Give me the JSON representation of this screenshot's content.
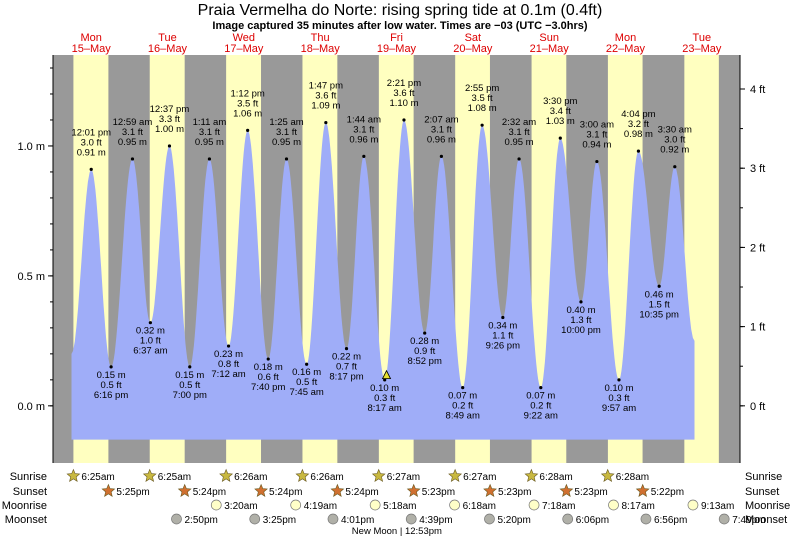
{
  "chart_data": {
    "type": "area",
    "title": "Praia Vermelha do Norte: rising  spring tide at 0.1m (0.4ft)",
    "subtitle": "Image captured 35 minutes after low water. Times are −03 (UTC −3.0hrs)",
    "days": [
      {
        "dow": "Mon",
        "date": "15–May"
      },
      {
        "dow": "Tue",
        "date": "16–May"
      },
      {
        "dow": "Wed",
        "date": "17–May"
      },
      {
        "dow": "Thu",
        "date": "18–May"
      },
      {
        "dow": "Fri",
        "date": "19–May"
      },
      {
        "dow": "Sat",
        "date": "20–May"
      },
      {
        "dow": "Sun",
        "date": "21–May"
      },
      {
        "dow": "Mon",
        "date": "22–May"
      },
      {
        "dow": "Tue",
        "date": "23–May"
      }
    ],
    "y_left_ticks": [
      {
        "value": 0.0,
        "label": "0.0 m"
      },
      {
        "value": 0.5,
        "label": "0.5 m"
      },
      {
        "value": 1.0,
        "label": "1.0 m"
      }
    ],
    "y_right_ticks": [
      {
        "value": 0,
        "label": "0 ft"
      },
      {
        "value": 1,
        "label": "1 ft"
      },
      {
        "value": 2,
        "label": "2 ft"
      },
      {
        "value": 3,
        "label": "3 ft"
      },
      {
        "value": 4,
        "label": "4 ft"
      }
    ],
    "ylim_m": [
      -0.22,
      1.35
    ],
    "xlim_hours": [
      -12,
      204
    ],
    "tides": [
      {
        "day": 0,
        "hour": 0.017,
        "time": "12:01 pm",
        "ft": "3.0 ft",
        "m": "0.91 m",
        "h": 0.91,
        "type": "high"
      },
      {
        "day": 0,
        "hour": 6.267,
        "time": "6:16 pm",
        "ft": "0.5 ft",
        "m": "0.15 m",
        "h": 0.15,
        "type": "low"
      },
      {
        "day": 0,
        "hour": 12.983,
        "time": "12:59 am",
        "ft": "3.1 ft",
        "m": "0.95 m",
        "h": 0.95,
        "type": "high"
      },
      {
        "day": 1,
        "hour": 18.617,
        "time": "6:37 am",
        "ft": "1.0 ft",
        "m": "0.32 m",
        "h": 0.32,
        "type": "low"
      },
      {
        "day": 1,
        "hour": 24.617,
        "time": "12:37 pm",
        "ft": "3.3 ft",
        "m": "1.00 m",
        "h": 1.0,
        "type": "high"
      },
      {
        "day": 1,
        "hour": 31.0,
        "time": "7:00 pm",
        "ft": "0.5 ft",
        "m": "0.15 m",
        "h": 0.15,
        "type": "low"
      },
      {
        "day": 1,
        "hour": 37.183,
        "time": "1:11 am",
        "ft": "3.1 ft",
        "m": "0.95 m",
        "h": 0.95,
        "type": "high"
      },
      {
        "day": 2,
        "hour": 43.2,
        "time": "7:12 am",
        "ft": "0.8 ft",
        "m": "0.23 m",
        "h": 0.23,
        "type": "low"
      },
      {
        "day": 2,
        "hour": 49.2,
        "time": "1:12 pm",
        "ft": "3.5 ft",
        "m": "1.06 m",
        "h": 1.06,
        "type": "high"
      },
      {
        "day": 2,
        "hour": 55.667,
        "time": "7:40 pm",
        "ft": "0.6 ft",
        "m": "0.18 m",
        "h": 0.18,
        "type": "low"
      },
      {
        "day": 2,
        "hour": 61.417,
        "time": "1:25 am",
        "ft": "3.1 ft",
        "m": "0.95 m",
        "h": 0.95,
        "type": "high"
      },
      {
        "day": 3,
        "hour": 67.75,
        "time": "7:45 am",
        "ft": "0.5 ft",
        "m": "0.16 m",
        "h": 0.16,
        "type": "low"
      },
      {
        "day": 3,
        "hour": 73.783,
        "time": "1:47 pm",
        "ft": "3.6 ft",
        "m": "1.09 m",
        "h": 1.09,
        "type": "high"
      },
      {
        "day": 3,
        "hour": 80.283,
        "time": "8:17 pm",
        "ft": "0.7 ft",
        "m": "0.22 m",
        "h": 0.22,
        "type": "low"
      },
      {
        "day": 3,
        "hour": 85.733,
        "time": "1:44 am",
        "ft": "3.1 ft",
        "m": "0.96 m",
        "h": 0.96,
        "type": "high"
      },
      {
        "day": 4,
        "hour": 92.283,
        "time": "8:17 am",
        "ft": "0.3 ft",
        "m": "0.10 m",
        "h": 0.1,
        "type": "low"
      },
      {
        "day": 4,
        "hour": 98.35,
        "time": "2:21 pm",
        "ft": "3.6 ft",
        "m": "1.10 m",
        "h": 1.1,
        "type": "high"
      },
      {
        "day": 4,
        "hour": 104.867,
        "time": "8:52 pm",
        "ft": "0.9 ft",
        "m": "0.28 m",
        "h": 0.28,
        "type": "low"
      },
      {
        "day": 4,
        "hour": 110.117,
        "time": "2:07 am",
        "ft": "3.1 ft",
        "m": "0.96 m",
        "h": 0.96,
        "type": "high"
      },
      {
        "day": 5,
        "hour": 116.817,
        "time": "8:49 am",
        "ft": "0.2 ft",
        "m": "0.07 m",
        "h": 0.07,
        "type": "low"
      },
      {
        "day": 5,
        "hour": 122.917,
        "time": "2:55 pm",
        "ft": "3.5 ft",
        "m": "1.08 m",
        "h": 1.08,
        "type": "high"
      },
      {
        "day": 5,
        "hour": 129.433,
        "time": "9:26 pm",
        "ft": "1.1 ft",
        "m": "0.34 m",
        "h": 0.34,
        "type": "low"
      },
      {
        "day": 5,
        "hour": 134.533,
        "time": "2:32 am",
        "ft": "3.1 ft",
        "m": "0.95 m",
        "h": 0.95,
        "type": "high"
      },
      {
        "day": 6,
        "hour": 141.367,
        "time": "9:22 am",
        "ft": "0.2 ft",
        "m": "0.07 m",
        "h": 0.07,
        "type": "low"
      },
      {
        "day": 6,
        "hour": 147.5,
        "time": "3:30 pm",
        "ft": "3.4 ft",
        "m": "1.03 m",
        "h": 1.03,
        "type": "high"
      },
      {
        "day": 6,
        "hour": 154.0,
        "time": "10:00 pm",
        "ft": "1.3 ft",
        "m": "0.40 m",
        "h": 0.4,
        "type": "low"
      },
      {
        "day": 6,
        "hour": 159.0,
        "time": "3:00 am",
        "ft": "3.1 ft",
        "m": "0.94 m",
        "h": 0.94,
        "type": "high"
      },
      {
        "day": 7,
        "hour": 165.95,
        "time": "9:57 am",
        "ft": "0.3 ft",
        "m": "0.10 m",
        "h": 0.1,
        "type": "low"
      },
      {
        "day": 7,
        "hour": 172.067,
        "time": "4:04 pm",
        "ft": "3.2 ft",
        "m": "0.98 m",
        "h": 0.98,
        "type": "high"
      },
      {
        "day": 7,
        "hour": 178.583,
        "time": "10:35 pm",
        "ft": "1.5 ft",
        "m": "0.46 m",
        "h": 0.46,
        "type": "low"
      },
      {
        "day": 7,
        "hour": 183.5,
        "time": "3:30 am",
        "ft": "3.0 ft",
        "m": "0.92 m",
        "h": 0.92,
        "type": "high"
      }
    ],
    "current_hour": 92.867,
    "daylight": [
      [
        -5.583,
        5.417
      ],
      [
        18.417,
        29.4
      ],
      [
        42.433,
        53.4
      ],
      [
        66.433,
        77.4
      ],
      [
        90.45,
        101.383
      ],
      [
        114.45,
        125.383
      ],
      [
        138.467,
        149.383
      ],
      [
        162.467,
        173.367
      ],
      [
        186.5,
        197.35
      ]
    ],
    "sunrise": {
      "label": "Sunrise",
      "times": [
        "6:25am",
        "6:25am",
        "6:26am",
        "6:26am",
        "6:27am",
        "6:27am",
        "6:28am",
        "6:28am"
      ]
    },
    "sunset": {
      "label": "Sunset",
      "times": [
        "5:25pm",
        "5:24pm",
        "5:24pm",
        "5:24pm",
        "5:23pm",
        "5:23pm",
        "5:23pm",
        "5:22pm"
      ]
    },
    "moonrise": {
      "label": "Moonrise",
      "times": [
        "3:20am",
        "4:19am",
        "5:18am",
        "6:18am",
        "7:18am",
        "8:17am",
        "9:13am"
      ]
    },
    "moonset": {
      "label": "Moonset",
      "times": [
        "2:50pm",
        "3:25pm",
        "4:01pm",
        "4:39pm",
        "5:20pm",
        "6:06pm",
        "6:56pm",
        "7:49pm"
      ]
    },
    "new_moon": "New Moon | 12:53pm",
    "colors": {
      "night": "#999999",
      "day": "#ffffc0",
      "water": "#9fadf8",
      "title": "#000000",
      "date": "#dd0000",
      "sun": "#c8b840",
      "sunset": "#d07030",
      "moon": "#ffffc8",
      "moonset": "#b0b0a8"
    }
  }
}
